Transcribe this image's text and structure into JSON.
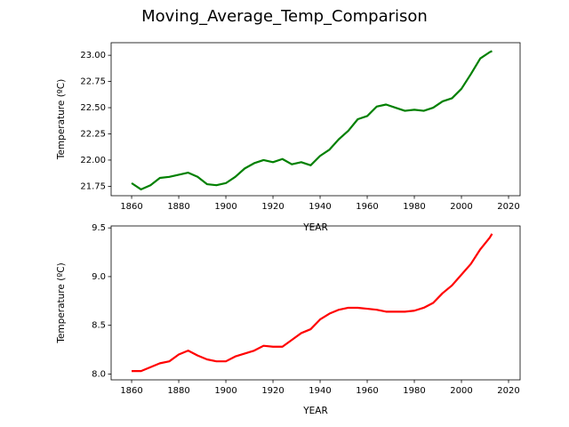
{
  "title": "Moving_Average_Temp_Comparison",
  "chart_data": [
    {
      "type": "line",
      "xlabel": "YEAR",
      "ylabel": "Temperature (ºC)",
      "x": [
        1860,
        1864,
        1868,
        1872,
        1876,
        1880,
        1884,
        1888,
        1892,
        1896,
        1900,
        1904,
        1908,
        1912,
        1916,
        1920,
        1924,
        1928,
        1932,
        1936,
        1940,
        1944,
        1948,
        1952,
        1956,
        1960,
        1964,
        1968,
        1972,
        1976,
        1980,
        1984,
        1988,
        1992,
        1996,
        2000,
        2004,
        2008,
        2012,
        2013
      ],
      "series": [
        {
          "color": "#008000",
          "values": [
            21.78,
            21.72,
            21.76,
            21.83,
            21.84,
            21.86,
            21.88,
            21.84,
            21.77,
            21.76,
            21.78,
            21.84,
            21.92,
            21.97,
            22.0,
            21.98,
            22.01,
            21.96,
            21.98,
            21.95,
            22.04,
            22.1,
            22.2,
            22.28,
            22.39,
            22.42,
            22.51,
            22.53,
            22.5,
            22.47,
            22.48,
            22.47,
            22.5,
            22.56,
            22.59,
            22.68,
            22.82,
            22.97,
            23.03,
            23.04
          ]
        }
      ],
      "xlim": [
        1851.3,
        2024.9
      ],
      "xticks": [
        1860,
        1880,
        1900,
        1920,
        1940,
        1960,
        1980,
        2000,
        2020
      ],
      "ylim": [
        21.66,
        23.12
      ],
      "yticks": [
        21.75,
        {
          "value": 22.0,
          "label": "22.00"
        },
        22.25,
        {
          "value": 22.5,
          "label": "22.50"
        },
        22.75,
        {
          "value": 23.0,
          "label": "23.00"
        }
      ]
    },
    {
      "type": "line",
      "xlabel": "YEAR",
      "ylabel": "Temperature (ºC)",
      "x": [
        1860,
        1864,
        1868,
        1872,
        1876,
        1880,
        1884,
        1888,
        1892,
        1896,
        1900,
        1904,
        1908,
        1912,
        1916,
        1920,
        1924,
        1928,
        1932,
        1936,
        1940,
        1944,
        1948,
        1952,
        1956,
        1960,
        1964,
        1968,
        1972,
        1976,
        1980,
        1984,
        1988,
        1992,
        1996,
        2000,
        2004,
        2008,
        2012,
        2013
      ],
      "series": [
        {
          "color": "#ff0000",
          "values": [
            8.03,
            8.03,
            8.07,
            8.11,
            8.13,
            8.2,
            8.24,
            8.19,
            8.15,
            8.13,
            8.13,
            8.18,
            8.21,
            8.24,
            8.29,
            8.28,
            8.28,
            8.35,
            8.42,
            8.46,
            8.56,
            8.62,
            8.66,
            8.68,
            8.68,
            8.67,
            8.66,
            8.64,
            8.64,
            8.64,
            8.65,
            8.68,
            8.73,
            8.83,
            8.91,
            9.02,
            9.13,
            9.28,
            9.4,
            9.44
          ]
        }
      ],
      "xlim": [
        1851.3,
        2024.9
      ],
      "xticks": [
        1860,
        1880,
        1900,
        1920,
        1940,
        1960,
        1980,
        2000,
        2020
      ],
      "ylim": [
        7.94,
        9.52
      ],
      "yticks": [
        {
          "value": 8.0,
          "label": "8.0"
        },
        8.5,
        {
          "value": 9.0,
          "label": "9.0"
        },
        9.5
      ]
    }
  ]
}
